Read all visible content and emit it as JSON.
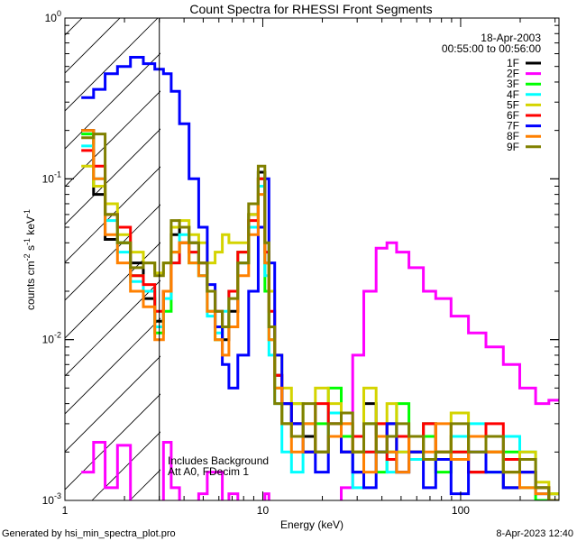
{
  "chart_data": {
    "type": "line",
    "style": "step-histogram",
    "title": "Count Spectra for RHESSI Front Segments",
    "xlabel": "Energy (keV)",
    "ylabel": [
      "counts cm",
      "-2",
      " s",
      "-1",
      " keV",
      "-1"
    ],
    "xscale": "log",
    "yscale": "log",
    "xlim": [
      1,
      314
    ],
    "ylim": [
      0.001,
      1
    ],
    "x_tick_labels": [
      {
        "v": 1,
        "t": "1"
      },
      {
        "v": 10,
        "t": "10"
      },
      {
        "v": 100,
        "t": "100"
      }
    ],
    "y_tick_labels": [
      {
        "v": 1,
        "b": "10",
        "e": "0"
      },
      {
        "v": 0.1,
        "b": "10",
        "e": "-1"
      },
      {
        "v": 0.01,
        "b": "10",
        "e": "-2"
      },
      {
        "v": 0.001,
        "b": "10",
        "e": "-3"
      }
    ],
    "shaded_region_keV": [
      1,
      3
    ],
    "date": "18-Apr-2003",
    "time_range": "00:55:00 to 00:56:00",
    "annotations": [
      "Includes Background",
      "Att A0, FDecim 1"
    ],
    "legend_position": "top-right",
    "x": [
      1.3,
      1.5,
      1.7,
      2.0,
      2.3,
      2.7,
      3.0,
      3.3,
      3.6,
      4.0,
      4.5,
      5.0,
      5.5,
      6.0,
      6.5,
      7.0,
      8.0,
      9.0,
      10,
      10.5,
      11,
      12,
      13,
      15,
      17,
      20,
      23,
      27,
      30,
      35,
      40,
      45,
      50,
      60,
      70,
      80,
      100,
      120,
      150,
      180,
      220,
      260,
      300
    ],
    "series": [
      {
        "name": "1F",
        "color": "#000000",
        "values": [
          0.2,
          0.08,
          0.042,
          0.04,
          0.03,
          0.018,
          0.013,
          0.02,
          0.045,
          0.05,
          0.04,
          0.03,
          0.02,
          0.012,
          0.01,
          0.015,
          0.03,
          0.06,
          0.11,
          0.03,
          0.012,
          0.006,
          0.004,
          0.003,
          0.0025,
          0.002,
          0.003,
          0.002,
          0.0015,
          0.004,
          0.002,
          0.003,
          0.0015,
          0.002,
          0.003,
          0.0018,
          0.0025,
          0.0015,
          0.002,
          0.0012,
          0.0015,
          0.0012,
          0.0011
        ]
      },
      {
        "name": "2F",
        "color": "#ff00ff",
        "values": [
          0.0015,
          0.0023,
          0.0012,
          0.0022,
          0.0008,
          0.0008,
          0.0008,
          0.0023,
          0.0012,
          0.0009,
          0.0008,
          0.0011,
          0.0015,
          0.0015,
          0.0008,
          0.0011,
          0.0009,
          0.0009,
          0.0009,
          0.0011,
          0.0009,
          0.0008,
          0.0008,
          0.0008,
          0.0008,
          0.0008,
          0.0009,
          0.0012,
          0.008,
          0.02,
          0.037,
          0.04,
          0.035,
          0.028,
          0.02,
          0.018,
          0.014,
          0.011,
          0.009,
          0.007,
          0.005,
          0.004,
          0.0042
        ]
      },
      {
        "name": "3F",
        "color": "#00ff00",
        "values": [
          0.19,
          0.09,
          0.06,
          0.04,
          0.025,
          0.02,
          0.011,
          0.015,
          0.035,
          0.04,
          0.03,
          0.025,
          0.015,
          0.01,
          0.012,
          0.02,
          0.035,
          0.05,
          0.1,
          0.02,
          0.01,
          0.005,
          0.003,
          0.004,
          0.002,
          0.003,
          0.005,
          0.0025,
          0.002,
          0.003,
          0.0015,
          0.002,
          0.004,
          0.002,
          0.0025,
          0.0015,
          0.002,
          0.0025,
          0.0015,
          0.002,
          0.0012,
          0.001,
          0.0011
        ]
      },
      {
        "name": "4F",
        "color": "#00ffff",
        "values": [
          0.16,
          0.1,
          0.055,
          0.035,
          0.023,
          0.02,
          0.012,
          0.018,
          0.03,
          0.045,
          0.035,
          0.025,
          0.014,
          0.011,
          0.015,
          0.02,
          0.03,
          0.05,
          0.09,
          0.025,
          0.008,
          0.004,
          0.002,
          0.0015,
          0.003,
          0.002,
          0.0035,
          0.002,
          0.0012,
          0.002,
          0.0025,
          0.0015,
          0.002,
          0.0018,
          0.003,
          0.002,
          0.0025,
          0.003,
          0.0015,
          0.0025,
          0.002,
          0.0012,
          0.001
        ]
      },
      {
        "name": "5F",
        "color": "#d4d400",
        "values": [
          0.12,
          0.09,
          0.07,
          0.045,
          0.035,
          0.03,
          0.026,
          0.03,
          0.05,
          0.055,
          0.045,
          0.04,
          0.03,
          0.035,
          0.045,
          0.04,
          0.04,
          0.06,
          0.1,
          0.04,
          0.02,
          0.008,
          0.005,
          0.004,
          0.003,
          0.005,
          0.004,
          0.003,
          0.002,
          0.005,
          0.003,
          0.004,
          0.002,
          0.0025,
          0.003,
          0.002,
          0.0035,
          0.0025,
          0.002,
          0.0015,
          0.002,
          0.0013,
          0.0011
        ]
      },
      {
        "name": "6F",
        "color": "#ff0000",
        "values": [
          0.15,
          0.12,
          0.06,
          0.05,
          0.025,
          0.022,
          0.015,
          0.02,
          0.03,
          0.04,
          0.035,
          0.03,
          0.02,
          0.015,
          0.012,
          0.02,
          0.035,
          0.055,
          0.1,
          0.035,
          0.015,
          0.006,
          0.004,
          0.003,
          0.002,
          0.004,
          0.003,
          0.002,
          0.0025,
          0.002,
          0.003,
          0.0018,
          0.0025,
          0.002,
          0.003,
          0.002,
          0.002,
          0.0015,
          0.003,
          0.0018,
          0.0015,
          0.0012,
          0.001
        ]
      },
      {
        "name": "7F",
        "color": "#0000ff",
        "values": [
          0.32,
          0.36,
          0.45,
          0.5,
          0.57,
          0.52,
          0.48,
          0.45,
          0.35,
          0.22,
          0.1,
          0.05,
          0.022,
          0.012,
          0.007,
          0.005,
          0.008,
          0.02,
          0.05,
          0.1,
          0.03,
          0.008,
          0.004,
          0.003,
          0.002,
          0.0015,
          0.0025,
          0.002,
          0.0015,
          0.0012,
          0.002,
          0.003,
          0.0015,
          0.002,
          0.0012,
          0.0018,
          0.0011,
          0.002,
          0.0015,
          0.0012,
          0.0015,
          0.0011,
          0.001
        ]
      },
      {
        "name": "8F",
        "color": "#ff8000",
        "values": [
          0.2,
          0.1,
          0.045,
          0.03,
          0.02,
          0.016,
          0.01,
          0.02,
          0.035,
          0.04,
          0.03,
          0.025,
          0.015,
          0.01,
          0.008,
          0.012,
          0.025,
          0.045,
          0.08,
          0.03,
          0.01,
          0.005,
          0.003,
          0.002,
          0.003,
          0.002,
          0.0025,
          0.003,
          0.002,
          0.0015,
          0.0025,
          0.002,
          0.0015,
          0.0025,
          0.002,
          0.003,
          0.0018,
          0.0025,
          0.002,
          0.0015,
          0.0012,
          0.0011,
          0.001
        ]
      },
      {
        "name": "9F",
        "color": "#808000",
        "values": [
          0.18,
          0.19,
          0.06,
          0.04,
          0.028,
          0.03,
          0.025,
          0.03,
          0.055,
          0.05,
          0.04,
          0.03,
          0.02,
          0.015,
          0.012,
          0.018,
          0.03,
          0.07,
          0.12,
          0.04,
          0.012,
          0.004,
          0.003,
          0.0025,
          0.004,
          0.002,
          0.003,
          0.0035,
          0.002,
          0.003,
          0.002,
          0.0025,
          0.003,
          0.0025,
          0.0018,
          0.002,
          0.003,
          0.002,
          0.0025,
          0.0015,
          0.0018,
          0.0012,
          0.001
        ]
      }
    ]
  },
  "footer": {
    "generated_by": "Generated by hsi_min_spectra_plot.pro",
    "timestamp": "8-Apr-2023 12:40"
  }
}
